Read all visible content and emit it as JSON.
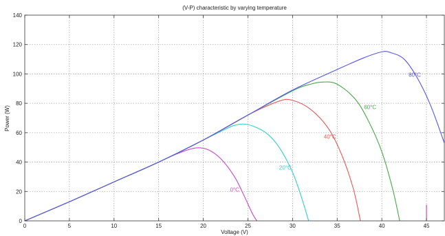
{
  "chart_data": {
    "type": "line",
    "title": "(V-P) characteristic by varying temperature",
    "xlabel": "Voltage (V)",
    "ylabel": "Power (W)",
    "xlim": [
      0,
      47
    ],
    "ylim": [
      0,
      140
    ],
    "xticks": [
      0,
      5,
      10,
      15,
      20,
      25,
      30,
      35,
      40,
      45
    ],
    "yticks": [
      0,
      20,
      40,
      60,
      80,
      100,
      120,
      140
    ],
    "grid": true,
    "series": [
      {
        "name": "0°C",
        "color": "#cc44cc",
        "label_at": [
          23,
          20
        ],
        "x": [
          0,
          5,
          10,
          15,
          17,
          19,
          20.5,
          22,
          23.5,
          24.5,
          25.5,
          26
        ],
        "y": [
          0,
          13,
          26.5,
          40,
          45.5,
          49.5,
          48.5,
          42,
          30,
          18,
          5,
          0
        ]
      },
      {
        "name": "20°C",
        "color": "#33cccc",
        "label_at": [
          28.5,
          35
        ],
        "x": [
          0,
          5,
          10,
          15,
          20,
          22,
          23.5,
          25,
          27,
          28.5,
          30,
          31,
          31.8
        ],
        "y": [
          0,
          13,
          26.5,
          40,
          55,
          61,
          65,
          65.5,
          60,
          50,
          33,
          16,
          0
        ]
      },
      {
        "name": "40°C",
        "color": "#ee5555",
        "label_at": [
          33.5,
          56
        ],
        "x": [
          0,
          5,
          10,
          15,
          20,
          25,
          28.5,
          30,
          32,
          34,
          35.5,
          36.8,
          37.6
        ],
        "y": [
          0,
          13,
          26.5,
          40,
          55,
          72,
          81.5,
          82,
          76,
          63,
          45,
          22,
          0
        ]
      },
      {
        "name": "60°C",
        "color": "#44aa44",
        "label_at": [
          38,
          76
        ],
        "x": [
          0,
          5,
          10,
          15,
          20,
          25,
          30,
          32,
          33.5,
          35,
          37,
          38.5,
          40,
          41.2,
          42
        ],
        "y": [
          0,
          13,
          26.5,
          40,
          55,
          72,
          88.5,
          93,
          94.5,
          93,
          83,
          68,
          47,
          22,
          0
        ]
      },
      {
        "name": "80°C",
        "color": "#5555ee",
        "label_at": [
          43,
          98
        ],
        "x": [
          0,
          5,
          10,
          15,
          20,
          25,
          30,
          35,
          38,
          40,
          41,
          42.5,
          44,
          45.5,
          47
        ],
        "y": [
          0,
          13,
          26.5,
          40,
          55,
          72,
          89,
          103,
          111,
          115,
          114.5,
          110,
          97,
          78,
          53
        ]
      }
    ],
    "marker": {
      "color": "#cc44cc",
      "x": [
        45,
        45
      ],
      "y": [
        0,
        11
      ]
    }
  }
}
